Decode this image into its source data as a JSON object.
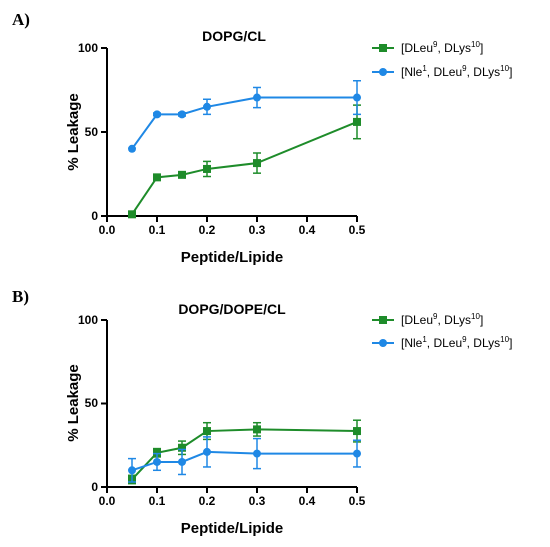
{
  "panels": [
    {
      "label": "A)",
      "chart_data": {
        "type": "line",
        "title": "DOPG/CL",
        "xlabel": "Peptide/Lipide",
        "ylabel": "% Leakage",
        "xlim": [
          0.0,
          0.5
        ],
        "ylim": [
          0,
          100
        ],
        "xticks": [
          "0.0",
          "0.1",
          "0.2",
          "0.3",
          "0.4",
          "0.5"
        ],
        "yticks": [
          "0",
          "50",
          "100"
        ],
        "grid": false,
        "legend_position": "right",
        "x": [
          0.05,
          0.1,
          0.15,
          0.2,
          0.3,
          0.5
        ],
        "series": [
          {
            "color": "#1e8c2a",
            "marker": "square",
            "legend": {
              "p1": "[DLeu",
              "s1": "9",
              "p2": ", DLys",
              "s2": "10",
              "p3": "]"
            },
            "values": [
              1,
              23,
              24.5,
              28,
              31.5,
              56
            ],
            "errors": [
              0.5,
              1.2,
              1.5,
              4.5,
              6,
              10
            ]
          },
          {
            "color": "#1f88e5",
            "marker": "circle",
            "legend": {
              "p1": "[Nle",
              "s1": "1",
              "p2": ", DLeu",
              "s2": "9",
              "p3": ", DLys",
              "s3": "10",
              "p4": "]"
            },
            "values": [
              40,
              60.5,
              60.5,
              65,
              70.5,
              70.5
            ],
            "errors": [
              0.5,
              0.8,
              1,
              4.5,
              6,
              10
            ]
          }
        ]
      }
    },
    {
      "label": "B)",
      "chart_data": {
        "type": "line",
        "title": "DOPG/DOPE/CL",
        "xlabel": "Peptide/Lipide",
        "ylabel": "% Leakage",
        "xlim": [
          0.0,
          0.5
        ],
        "ylim": [
          0,
          100
        ],
        "xticks": [
          "0.0",
          "0.1",
          "0.2",
          "0.3",
          "0.4",
          "0.5"
        ],
        "yticks": [
          "0",
          "50",
          "100"
        ],
        "grid": false,
        "legend_position": "right",
        "x": [
          0.05,
          0.1,
          0.15,
          0.2,
          0.3,
          0.5
        ],
        "series": [
          {
            "color": "#1e8c2a",
            "marker": "square",
            "legend": {
              "p1": "[DLeu",
              "s1": "9",
              "p2": ", DLys",
              "s2": "10",
              "p3": "]"
            },
            "values": [
              4.5,
              20.5,
              23.5,
              33.5,
              34.5,
              33.5
            ],
            "errors": [
              2.5,
              2.5,
              4,
              5,
              4,
              6.5
            ]
          },
          {
            "color": "#1f88e5",
            "marker": "circle",
            "legend": {
              "p1": "[Nle",
              "s1": "1",
              "p2": ", DLeu",
              "s2": "9",
              "p3": ", DLys",
              "s3": "10",
              "p4": "]"
            },
            "values": [
              10,
              15,
              15,
              21,
              20,
              20
            ],
            "errors": [
              7,
              5,
              7.5,
              9,
              9,
              8
            ]
          }
        ]
      }
    }
  ]
}
